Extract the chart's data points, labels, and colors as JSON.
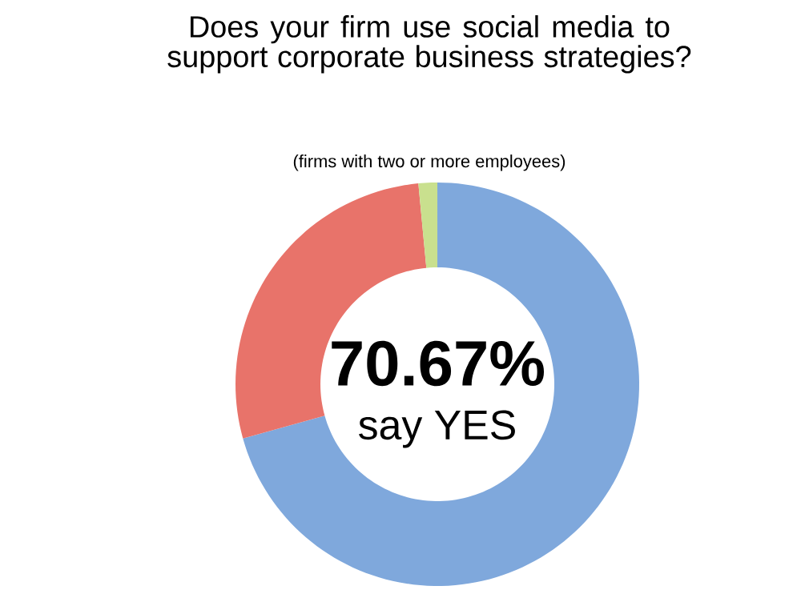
{
  "chart_data": {
    "type": "donut",
    "title": "Does your firm use social media to support corporate business strategies?",
    "subtitle": "(firms with two or more employees)",
    "categories": [
      null,
      null,
      null
    ],
    "values": [
      70.67,
      27.83,
      1.5
    ],
    "colors": [
      "#7fa8dc",
      "#e8736a",
      "#c9e08e"
    ],
    "annotations": [
      "70.67%",
      "say YES"
    ]
  }
}
